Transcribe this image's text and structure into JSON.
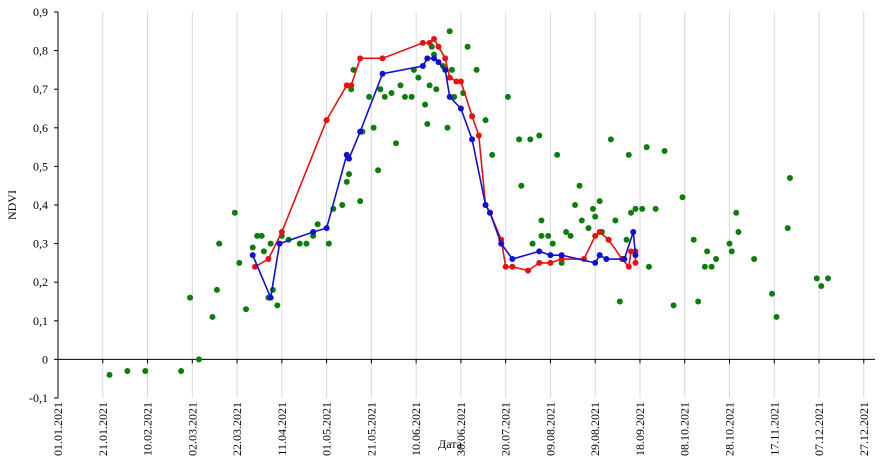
{
  "chart_data": {
    "type": "line",
    "xlabel": "Дата",
    "ylabel": "NDVI",
    "xlim": [
      "2021-01-01",
      "2022-01-01"
    ],
    "xticks": [
      {
        "value": "2021-01-01",
        "label": "01.01.2021"
      },
      {
        "value": "2021-01-21",
        "label": "21.01.2021"
      },
      {
        "value": "2021-02-10",
        "label": "10.02.2021"
      },
      {
        "value": "2021-03-02",
        "label": "02.03.2021"
      },
      {
        "value": "2021-03-22",
        "label": "22.03.2021"
      },
      {
        "value": "2021-04-11",
        "label": "11.04.2021"
      },
      {
        "value": "2021-05-01",
        "label": "01.05.2021"
      },
      {
        "value": "2021-05-21",
        "label": "21.05.2021"
      },
      {
        "value": "2021-06-10",
        "label": "10.06.2021"
      },
      {
        "value": "2021-06-30",
        "label": "30.06.2021"
      },
      {
        "value": "2021-07-20",
        "label": "20.07.2021"
      },
      {
        "value": "2021-08-09",
        "label": "09.08.2021"
      },
      {
        "value": "2021-08-29",
        "label": "29.08.2021"
      },
      {
        "value": "2021-09-18",
        "label": "18.09.2021"
      },
      {
        "value": "2021-10-08",
        "label": "08.10.2021"
      },
      {
        "value": "2021-10-28",
        "label": "28.10.2021"
      },
      {
        "value": "2021-11-17",
        "label": "17.11.2021"
      },
      {
        "value": "2021-12-07",
        "label": "07.12.2021"
      },
      {
        "value": "2021-12-27",
        "label": "27.12.2021"
      }
    ],
    "ylim": [
      -0.1,
      0.9
    ],
    "yticks": [
      {
        "value": -0.1,
        "label": "-0,1"
      },
      0,
      {
        "value": 0.1,
        "label": "0,1"
      },
      {
        "value": 0.2,
        "label": "0,2"
      },
      {
        "value": 0.3,
        "label": "0,3"
      },
      {
        "value": 0.4,
        "label": "0,4"
      },
      {
        "value": 0.5,
        "label": "0,5"
      },
      {
        "value": 0.6,
        "label": "0,6"
      },
      {
        "value": 0.7,
        "label": "0,7"
      },
      {
        "value": 0.8,
        "label": "0,8"
      },
      {
        "value": 0.9,
        "label": "0,9"
      }
    ],
    "grid": true,
    "series": [
      {
        "color": "#0a7d0a",
        "line": false,
        "x": [
          "2021-01-24",
          "2021-02-01",
          "2021-02-09",
          "2021-02-25",
          "2021-03-01",
          "2021-03-05",
          "2021-03-11",
          "2021-03-13",
          "2021-03-14",
          "2021-03-21",
          "2021-03-23",
          "2021-03-26",
          "2021-03-29",
          "2021-03-31",
          "2021-04-02",
          "2021-04-03",
          "2021-04-05",
          "2021-04-06",
          "2021-04-07",
          "2021-04-09",
          "2021-04-11",
          "2021-04-14",
          "2021-04-19",
          "2021-04-22",
          "2021-04-25",
          "2021-04-27",
          "2021-05-02",
          "2021-05-04",
          "2021-05-08",
          "2021-05-10",
          "2021-05-11",
          "2021-05-12",
          "2021-05-13",
          "2021-05-16",
          "2021-05-17",
          "2021-05-20",
          "2021-05-22",
          "2021-05-24",
          "2021-05-25",
          "2021-05-27",
          "2021-05-30",
          "2021-06-01",
          "2021-06-03",
          "2021-06-05",
          "2021-06-08",
          "2021-06-09",
          "2021-06-11",
          "2021-06-14",
          "2021-06-15",
          "2021-06-16",
          "2021-06-17",
          "2021-06-18",
          "2021-06-19",
          "2021-06-22",
          "2021-06-24",
          "2021-06-25",
          "2021-06-26",
          "2021-06-27",
          "2021-07-01",
          "2021-07-03",
          "2021-07-07",
          "2021-07-11",
          "2021-07-14",
          "2021-07-21",
          "2021-07-26",
          "2021-07-27",
          "2021-07-31",
          "2021-08-01",
          "2021-08-04",
          "2021-08-05",
          "2021-08-05",
          "2021-08-08",
          "2021-08-10",
          "2021-08-12",
          "2021-08-14",
          "2021-08-16",
          "2021-08-18",
          "2021-08-20",
          "2021-08-22",
          "2021-08-23",
          "2021-08-26",
          "2021-08-28",
          "2021-08-29",
          "2021-08-31",
          "2021-09-01",
          "2021-09-04",
          "2021-09-05",
          "2021-09-07",
          "2021-09-09",
          "2021-09-11",
          "2021-09-12",
          "2021-09-13",
          "2021-09-14",
          "2021-09-16",
          "2021-09-19",
          "2021-09-21",
          "2021-09-22",
          "2021-09-25",
          "2021-09-29",
          "2021-10-03",
          "2021-10-07",
          "2021-10-12",
          "2021-10-14",
          "2021-10-17",
          "2021-10-18",
          "2021-10-20",
          "2021-10-22",
          "2021-10-28",
          "2021-10-29",
          "2021-10-31",
          "2021-11-01",
          "2021-11-08",
          "2021-11-16",
          "2021-11-18",
          "2021-11-23",
          "2021-11-24",
          "2021-12-06",
          "2021-12-08",
          "2021-12-11"
        ],
        "values": [
          -0.04,
          -0.03,
          -0.03,
          -0.03,
          0.16,
          0.0,
          0.11,
          0.18,
          0.3,
          0.38,
          0.25,
          0.13,
          0.29,
          0.32,
          0.32,
          0.28,
          0.16,
          0.3,
          0.18,
          0.14,
          0.32,
          0.31,
          0.3,
          0.3,
          0.32,
          0.35,
          0.3,
          0.39,
          0.4,
          0.46,
          0.48,
          0.7,
          0.75,
          0.41,
          0.59,
          0.68,
          0.6,
          0.49,
          0.7,
          0.68,
          0.69,
          0.56,
          0.71,
          0.68,
          0.68,
          0.75,
          0.73,
          0.66,
          0.61,
          0.71,
          0.81,
          0.79,
          0.7,
          0.76,
          0.6,
          0.85,
          0.75,
          0.68,
          0.69,
          0.81,
          0.75,
          0.62,
          0.53,
          0.68,
          0.57,
          0.45,
          0.57,
          0.3,
          0.58,
          0.36,
          0.32,
          0.32,
          0.3,
          0.53,
          0.25,
          0.33,
          0.32,
          0.4,
          0.45,
          0.36,
          0.34,
          0.39,
          0.37,
          0.41,
          0.33,
          0.31,
          0.57,
          0.36,
          0.15,
          0.26,
          0.31,
          0.53,
          0.38,
          0.39,
          0.39,
          0.55,
          0.24,
          0.39,
          0.54,
          0.14,
          0.42,
          0.31,
          0.15,
          0.24,
          0.28,
          0.24,
          0.26,
          0.3,
          0.28,
          0.38,
          0.33,
          0.26,
          0.17,
          0.11,
          0.34,
          0.47,
          0.21,
          0.19,
          0.21
        ]
      },
      {
        "color": "#e81010",
        "line": true,
        "x": [
          "2021-03-30",
          "2021-04-05",
          "2021-04-11",
          "2021-05-01",
          "2021-05-10",
          "2021-05-12",
          "2021-05-16",
          "2021-05-26",
          "2021-06-13",
          "2021-06-16",
          "2021-06-18",
          "2021-06-20",
          "2021-06-23",
          "2021-06-25",
          "2021-06-28",
          "2021-06-30",
          "2021-07-05",
          "2021-07-08",
          "2021-07-11",
          "2021-07-13",
          "2021-07-18",
          "2021-07-20",
          "2021-07-23",
          "2021-07-30",
          "2021-08-04",
          "2021-08-09",
          "2021-08-14",
          "2021-08-24",
          "2021-08-29",
          "2021-08-31",
          "2021-09-04",
          "2021-09-10",
          "2021-09-13",
          "2021-09-14",
          "2021-09-16",
          "2021-09-16"
        ],
        "values": [
          0.24,
          0.26,
          0.33,
          0.62,
          0.71,
          0.71,
          0.78,
          0.78,
          0.82,
          0.82,
          0.83,
          0.81,
          0.78,
          0.73,
          0.72,
          0.72,
          0.63,
          0.58,
          0.4,
          0.38,
          0.31,
          0.24,
          0.24,
          0.23,
          0.25,
          0.25,
          0.26,
          0.26,
          0.32,
          0.33,
          0.31,
          0.26,
          0.24,
          0.28,
          0.28,
          0.25
        ]
      },
      {
        "color": "#1010d0",
        "line": true,
        "x": [
          "2021-03-29",
          "2021-04-06",
          "2021-04-10",
          "2021-04-25",
          "2021-05-01",
          "2021-05-10",
          "2021-05-11",
          "2021-05-16",
          "2021-05-26",
          "2021-06-13",
          "2021-06-15",
          "2021-06-18",
          "2021-06-20",
          "2021-06-23",
          "2021-06-25",
          "2021-06-30",
          "2021-07-05",
          "2021-07-11",
          "2021-07-13",
          "2021-07-18",
          "2021-07-23",
          "2021-08-04",
          "2021-08-09",
          "2021-08-14",
          "2021-08-29",
          "2021-08-31",
          "2021-09-03",
          "2021-09-11",
          "2021-09-15",
          "2021-09-16"
        ],
        "values": [
          0.27,
          0.16,
          0.3,
          0.33,
          0.34,
          0.53,
          0.52,
          0.59,
          0.74,
          0.76,
          0.78,
          0.78,
          0.77,
          0.75,
          0.68,
          0.65,
          0.57,
          0.4,
          0.38,
          0.3,
          0.26,
          0.28,
          0.27,
          0.27,
          0.25,
          0.27,
          0.26,
          0.26,
          0.33,
          0.27
        ]
      }
    ]
  }
}
